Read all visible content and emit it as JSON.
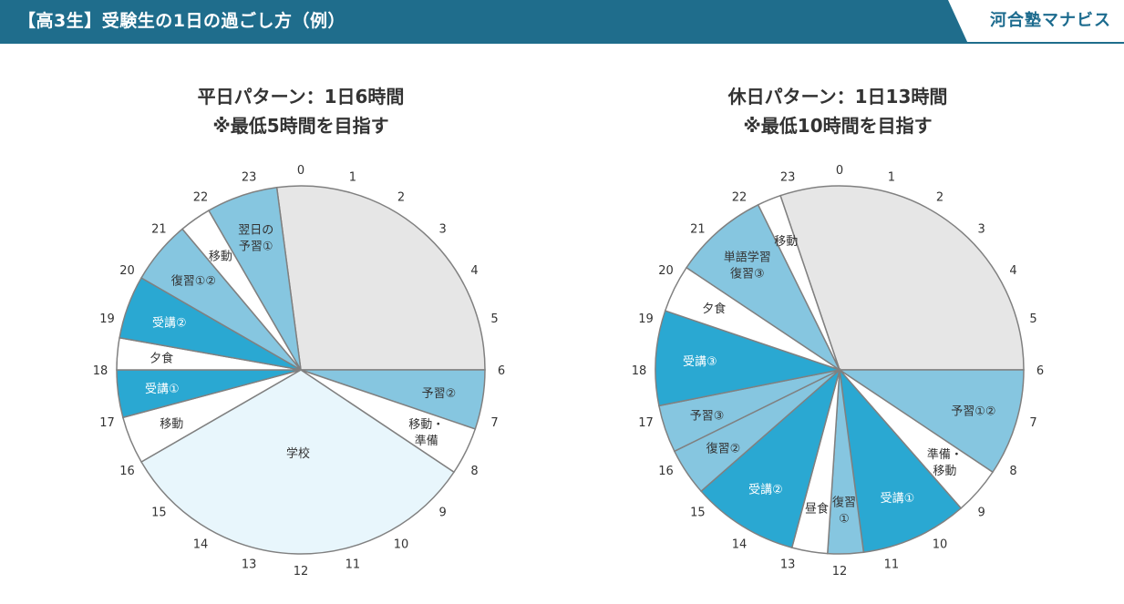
{
  "header": {
    "title": "【高3生】受験生の1日の過ごし方（例）",
    "brand": "河合塾マナビス"
  },
  "colors": {
    "header_bg": "#1f6d8c",
    "sleep": "#e6e6e6",
    "school": "#e8f6fc",
    "light_blue": "#86c6e0",
    "dark_blue": "#2aa8d2",
    "white": "#ffffff",
    "stroke": "#808080"
  },
  "chart_data": [
    {
      "type": "pie",
      "title": [
        "平日パターン：1日6時間",
        "※最低5時間を目指す"
      ],
      "clock_labels": [
        "0",
        "1",
        "2",
        "3",
        "4",
        "5",
        "6",
        "7",
        "8",
        "9",
        "10",
        "11",
        "12",
        "13",
        "14",
        "15",
        "16",
        "17",
        "18",
        "19",
        "20",
        "21",
        "22",
        "23"
      ],
      "slices": [
        {
          "start": 23.5,
          "end": 6,
          "label": [
            ""
          ],
          "color": "sleep"
        },
        {
          "start": 6,
          "end": 7.25,
          "label": [
            "予習②"
          ],
          "color": "light_blue"
        },
        {
          "start": 7.25,
          "end": 8.25,
          "label": [
            "移動・",
            "準備"
          ],
          "color": "white"
        },
        {
          "start": 8.25,
          "end": 16,
          "label": [
            "学校"
          ],
          "color": "school"
        },
        {
          "start": 16,
          "end": 17,
          "label": [
            "移動"
          ],
          "color": "white"
        },
        {
          "start": 17,
          "end": 18,
          "label": [
            "受講①"
          ],
          "color": "dark_blue"
        },
        {
          "start": 18,
          "end": 18.67,
          "label": [
            "夕食"
          ],
          "color": "white"
        },
        {
          "start": 18.67,
          "end": 20,
          "label": [
            "受講②"
          ],
          "color": "dark_blue"
        },
        {
          "start": 20,
          "end": 21.33,
          "label": [
            "復習①②"
          ],
          "color": "light_blue"
        },
        {
          "start": 21.33,
          "end": 22,
          "label": [
            "移動"
          ],
          "color": "white"
        },
        {
          "start": 22,
          "end": 23.5,
          "label": [
            "翌日の",
            "予習①"
          ],
          "color": "light_blue"
        }
      ]
    },
    {
      "type": "pie",
      "title": [
        "休日パターン：1日13時間",
        "※最低10時間を目指す"
      ],
      "clock_labels": [
        "0",
        "1",
        "2",
        "3",
        "4",
        "5",
        "6",
        "7",
        "8",
        "9",
        "10",
        "11",
        "12",
        "13",
        "14",
        "15",
        "16",
        "17",
        "18",
        "19",
        "20",
        "21",
        "22",
        "23"
      ],
      "slices": [
        {
          "start": 22.75,
          "end": 6,
          "label": [
            ""
          ],
          "color": "sleep"
        },
        {
          "start": 6,
          "end": 8.25,
          "label": [
            "予習①②"
          ],
          "color": "light_blue"
        },
        {
          "start": 8.25,
          "end": 9.25,
          "label": [
            "準備・",
            "移動"
          ],
          "color": "white"
        },
        {
          "start": 9.25,
          "end": 11.5,
          "label": [
            "受講①"
          ],
          "color": "dark_blue"
        },
        {
          "start": 11.5,
          "end": 12.25,
          "label": [
            "復習",
            "①"
          ],
          "color": "light_blue"
        },
        {
          "start": 12.25,
          "end": 13,
          "label": [
            "昼食"
          ],
          "color": "white"
        },
        {
          "start": 13,
          "end": 15.25,
          "label": [
            "受講②"
          ],
          "color": "dark_blue"
        },
        {
          "start": 15.25,
          "end": 16.25,
          "label": [
            "復習②"
          ],
          "color": "light_blue"
        },
        {
          "start": 16.25,
          "end": 17.25,
          "label": [
            "予習③"
          ],
          "color": "light_blue"
        },
        {
          "start": 17.25,
          "end": 19.25,
          "label": [
            "受講③"
          ],
          "color": "dark_blue"
        },
        {
          "start": 19.25,
          "end": 20.25,
          "label": [
            "夕食"
          ],
          "color": "white"
        },
        {
          "start": 20.25,
          "end": 22.25,
          "label": [
            "単語学習",
            "復習③"
          ],
          "color": "light_blue"
        },
        {
          "start": 22.25,
          "end": 22.75,
          "label": [
            "移動"
          ],
          "color": "white"
        }
      ]
    }
  ]
}
